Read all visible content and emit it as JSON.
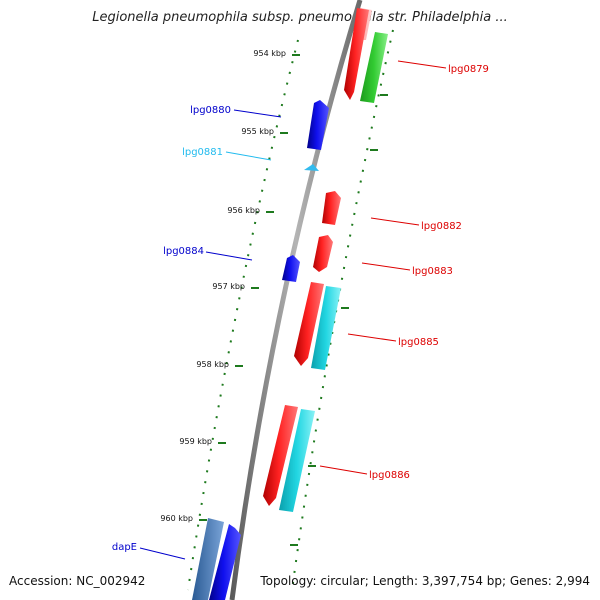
{
  "title": "Legionella pneumophila subsp. pneumophila str. Philadelphia ...",
  "footer": {
    "accession": "Accession: NC_002942",
    "summary": "Topology: circular; Length: 3,397,754 bp; Genes: 2,994"
  },
  "ticks": [
    {
      "kbp": 954,
      "label": "954 kbp"
    },
    {
      "kbp": 955,
      "label": "955 kbp"
    },
    {
      "kbp": 956,
      "label": "956 kbp"
    },
    {
      "kbp": 957,
      "label": "957 kbp"
    },
    {
      "kbp": 958,
      "label": "958 kbp"
    },
    {
      "kbp": 959,
      "label": "959 kbp"
    },
    {
      "kbp": 960,
      "label": "960 kbp"
    }
  ],
  "gene_labels": [
    {
      "id": "lpg0879",
      "text": "lpg0879",
      "color": "#dd0000"
    },
    {
      "id": "lpg0880",
      "text": "lpg0880",
      "color": "#0000cc"
    },
    {
      "id": "lpg0881",
      "text": "lpg0881",
      "color": "#22bbee"
    },
    {
      "id": "lpg0882",
      "text": "lpg0882",
      "color": "#dd0000"
    },
    {
      "id": "lpg0883",
      "text": "lpg0883",
      "color": "#dd0000"
    },
    {
      "id": "lpg0884",
      "text": "lpg0884",
      "color": "#0000cc"
    },
    {
      "id": "lpg0885",
      "text": "lpg0885",
      "color": "#dd0000"
    },
    {
      "id": "lpg0886",
      "text": "lpg0886",
      "color": "#dd0000"
    },
    {
      "id": "dapE",
      "text": "dapE",
      "color": "#0000cc"
    }
  ],
  "colors": {
    "backbone": "#8a8a8a",
    "tick": "#1e7a1e",
    "red": "#ee1111",
    "blue": "#0a0ae0",
    "cyan": "#22c8d8",
    "green": "#33cc33",
    "pink": "#ffaaaa",
    "steel": "#4a7ab8"
  }
}
